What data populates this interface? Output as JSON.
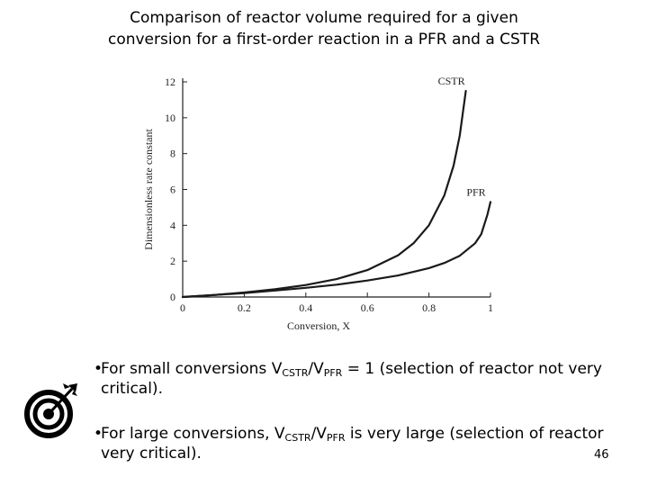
{
  "title": {
    "line1": "Comparison of reactor volume required for a given",
    "line2": "conversion for a first-order reaction in a PFR and a CSTR"
  },
  "chart_data": {
    "type": "line",
    "title": "",
    "xlabel": "Conversion, X",
    "ylabel": "Dimensionless rate constant",
    "xlim": [
      0,
      1
    ],
    "ylim": [
      0,
      12
    ],
    "x_ticks": [
      "0",
      "0.2",
      "0.4",
      "0.6",
      "0.8",
      "1"
    ],
    "y_ticks": [
      "0",
      "2",
      "4",
      "6",
      "8",
      "10",
      "12"
    ],
    "grid": false,
    "series": [
      {
        "name": "CSTR",
        "x": [
          0,
          0.1,
          0.2,
          0.3,
          0.4,
          0.5,
          0.6,
          0.7,
          0.75,
          0.8,
          0.85,
          0.88,
          0.9,
          0.92
        ],
        "values": [
          0,
          0.11,
          0.25,
          0.43,
          0.67,
          1.0,
          1.5,
          2.33,
          3.0,
          4.0,
          5.67,
          7.33,
          9.0,
          11.5
        ]
      },
      {
        "name": "PFR",
        "x": [
          0,
          0.1,
          0.2,
          0.3,
          0.4,
          0.5,
          0.6,
          0.7,
          0.8,
          0.85,
          0.9,
          0.95,
          0.97,
          0.99,
          1.0
        ],
        "values": [
          0,
          0.11,
          0.22,
          0.36,
          0.51,
          0.69,
          0.92,
          1.2,
          1.61,
          1.9,
          2.3,
          3.0,
          3.5,
          4.6,
          5.3
        ]
      }
    ],
    "annotations": [
      "CSTR",
      "PFR"
    ]
  },
  "bullets": [
    {
      "symbol": "•",
      "pre": "For small conversions  V",
      "sub1": "CSTR",
      "mid": "/V",
      "sub2": "PFR",
      "post": " = 1 (selection of reactor not very critical)."
    },
    {
      "symbol": "•",
      "pre": "For large conversions, V",
      "sub1": "CSTR",
      "mid": "/V",
      "sub2": "PFR",
      "post": " is very large (selection of reactor very critical)."
    }
  ],
  "page_number": "46",
  "icon": "target-icon"
}
